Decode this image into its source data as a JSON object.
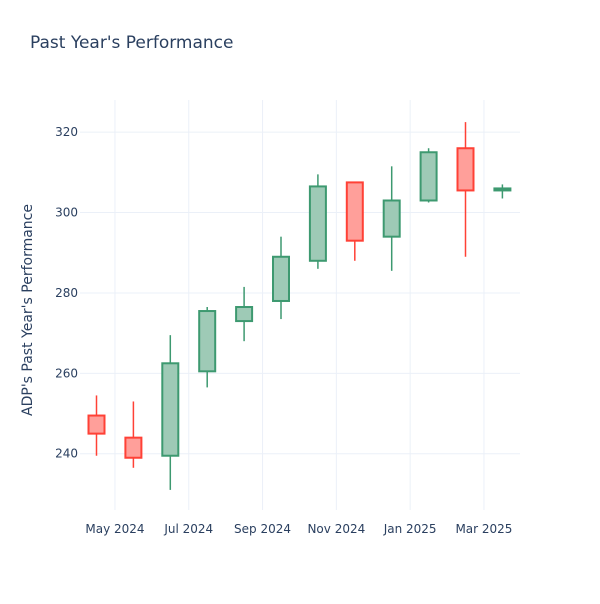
{
  "chart_data": {
    "type": "candlestick",
    "title": "Past Year's Performance",
    "xlabel": "",
    "ylabel": "ADP's Past Year's Performance",
    "ylim": [
      226,
      328
    ],
    "yticks": [
      240,
      260,
      280,
      300,
      320
    ],
    "xticks": [
      "May 2024",
      "Jul 2024",
      "Sep 2024",
      "Nov 2024",
      "Jan 2025",
      "Mar 2025"
    ],
    "grid": true,
    "colors": {
      "up": "#3d9970",
      "up_fill": "#9ecab6",
      "down": "#ff4136",
      "down_fill": "#ff9f9a",
      "grid": "#ebf0f8",
      "text": "#2a3f5f"
    },
    "candles": [
      {
        "month": "2024-04",
        "open": 249.5,
        "high": 254.5,
        "low": 239.5,
        "close": 245.0
      },
      {
        "month": "2024-05",
        "open": 244.0,
        "high": 253.0,
        "low": 236.5,
        "close": 239.0
      },
      {
        "month": "2024-06",
        "open": 239.5,
        "high": 269.5,
        "low": 231.0,
        "close": 262.5
      },
      {
        "month": "2024-07",
        "open": 260.5,
        "high": 276.5,
        "low": 256.5,
        "close": 275.5
      },
      {
        "month": "2024-08",
        "open": 273.0,
        "high": 281.5,
        "low": 268.0,
        "close": 276.5
      },
      {
        "month": "2024-09",
        "open": 278.0,
        "high": 294.0,
        "low": 273.5,
        "close": 289.0
      },
      {
        "month": "2024-10",
        "open": 288.0,
        "high": 309.5,
        "low": 286.0,
        "close": 306.5
      },
      {
        "month": "2024-11",
        "open": 307.5,
        "high": 307.5,
        "low": 288.0,
        "close": 293.0
      },
      {
        "month": "2024-12",
        "open": 294.0,
        "high": 311.5,
        "low": 285.5,
        "close": 303.0
      },
      {
        "month": "2025-01",
        "open": 303.0,
        "high": 316.0,
        "low": 302.5,
        "close": 315.0
      },
      {
        "month": "2025-02",
        "open": 316.0,
        "high": 322.5,
        "low": 289.0,
        "close": 305.5
      },
      {
        "month": "2025-03",
        "open": 305.5,
        "high": 307.0,
        "low": 303.5,
        "close": 306.0
      }
    ]
  }
}
